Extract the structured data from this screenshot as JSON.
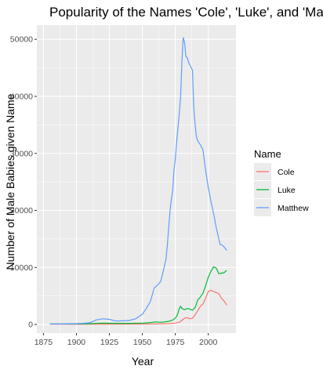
{
  "chart_data": {
    "type": "line",
    "title": "Popularity of the Names 'Cole', 'Luke', and 'Matthew'",
    "xlabel": "Year",
    "ylabel": "Number of Male Babies given Name",
    "xlim": [
      1880,
      2014
    ],
    "ylim": [
      0,
      51000
    ],
    "x_ticks": [
      1875,
      1900,
      1925,
      1950,
      1975,
      2000
    ],
    "y_ticks": [
      0,
      10000,
      20000,
      30000,
      40000,
      50000
    ],
    "grid": true,
    "panel_background": "#ebebeb",
    "legend": {
      "title": "Name",
      "placement": "right"
    },
    "series": [
      {
        "name": "Cole",
        "color": "#f8766d",
        "x": [
          1880,
          1900,
          1920,
          1940,
          1960,
          1970,
          1975,
          1978,
          1980,
          1982,
          1984,
          1986,
          1988,
          1990,
          1992,
          1994,
          1996,
          1998,
          2000,
          2002,
          2004,
          2006,
          2008,
          2010,
          2012,
          2014
        ],
        "values": [
          50,
          40,
          60,
          50,
          100,
          150,
          250,
          400,
          700,
          1100,
          1200,
          1000,
          1100,
          1700,
          2400,
          3200,
          3600,
          4600,
          5800,
          6000,
          5800,
          5600,
          5400,
          4600,
          4100,
          3400
        ]
      },
      {
        "name": "Luke",
        "color": "#00ba38",
        "x": [
          1880,
          1890,
          1900,
          1910,
          1920,
          1930,
          1940,
          1950,
          1955,
          1960,
          1965,
          1970,
          1972,
          1974,
          1976,
          1977,
          1978,
          1979,
          1980,
          1982,
          1984,
          1986,
          1988,
          1990,
          1992,
          1994,
          1996,
          1998,
          2000,
          2002,
          2004,
          2006,
          2008,
          2010,
          2012,
          2014
        ],
        "values": [
          100,
          100,
          100,
          150,
          250,
          200,
          200,
          250,
          300,
          450,
          400,
          550,
          700,
          900,
          1400,
          2000,
          2800,
          3200,
          2800,
          2600,
          2800,
          2700,
          2500,
          3000,
          4300,
          4800,
          5500,
          6800,
          8300,
          9300,
          10100,
          9900,
          8900,
          9000,
          9100,
          9500
        ]
      },
      {
        "name": "Matthew",
        "color": "#619cff",
        "x": [
          1880,
          1890,
          1900,
          1905,
          1910,
          1915,
          1920,
          1925,
          1930,
          1935,
          1940,
          1945,
          1950,
          1953,
          1956,
          1959,
          1962,
          1964,
          1966,
          1968,
          1969,
          1970,
          1971,
          1972,
          1973,
          1974,
          1975,
          1976,
          1977,
          1978,
          1979,
          1980,
          1981,
          1982,
          1983,
          1984,
          1985,
          1986,
          1988,
          1989,
          1990,
          1991,
          1992,
          1994,
          1996,
          1998,
          2000,
          2002,
          2004,
          2006,
          2008,
          2009,
          2010,
          2012,
          2014
        ],
        "values": [
          100,
          100,
          150,
          200,
          300,
          800,
          1000,
          900,
          600,
          650,
          700,
          1000,
          1800,
          2800,
          4000,
          6400,
          7000,
          7600,
          9500,
          11500,
          14000,
          17000,
          20000,
          22000,
          23500,
          27000,
          29000,
          32000,
          34500,
          37000,
          40000,
          46000,
          50300,
          49500,
          47000,
          46800,
          46000,
          45500,
          44600,
          38000,
          35000,
          33000,
          32200,
          31500,
          30600,
          27000,
          24000,
          21600,
          19500,
          17000,
          15000,
          14000,
          14000,
          13600,
          13000
        ]
      }
    ]
  }
}
